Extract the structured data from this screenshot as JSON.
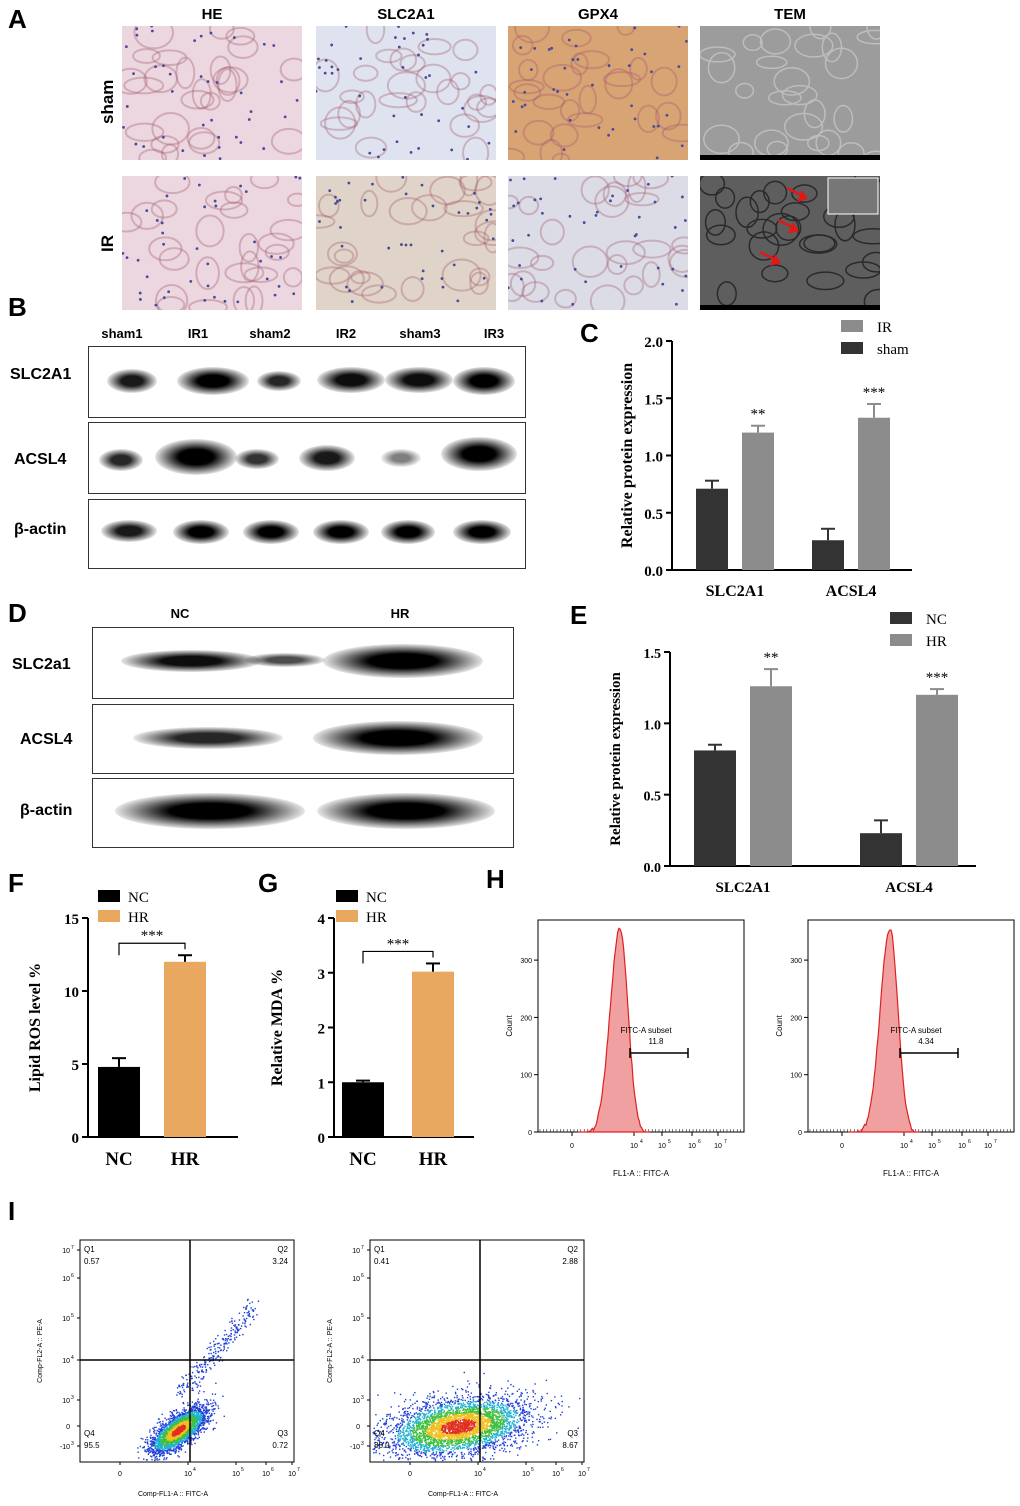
{
  "panel_a": {
    "label": "A",
    "columns": [
      "HE",
      "SLC2A1",
      "GPX4",
      "TEM"
    ],
    "rows": [
      "sham",
      "IR"
    ],
    "colors": {
      "he": "#ecd6df",
      "slc_sham": "#dfe3ef",
      "slc_ir": "#e0d4c8",
      "gpx_sham": "#d9a474",
      "gpx_ir": "#dcdce6",
      "tem_sham": "#9c9c9c",
      "tem_ir": "#5e5e5e",
      "arrow": "#e01818"
    }
  },
  "panel_b": {
    "label": "B",
    "lanes": [
      "sham1",
      "IR1",
      "sham2",
      "IR2",
      "sham3",
      "IR3"
    ],
    "proteins": [
      "SLC2A1",
      "ACSL4",
      "β-actin"
    ]
  },
  "panel_d": {
    "label": "D",
    "lanes": [
      "NC",
      "HR"
    ],
    "proteins": [
      "SLC2a1",
      "ACSL4",
      "β-actin"
    ]
  },
  "panel_h": {
    "label": "H",
    "ylabel": "Count",
    "xlabel": "FL1-A :: FITC-A",
    "gate_label": "FITC-A subset",
    "yticks": [
      "0",
      "100",
      "200",
      "300"
    ],
    "xticks": [
      "0",
      "10",
      "10",
      "10",
      "10"
    ],
    "xtick_exps": [
      "",
      "4",
      "5",
      "6",
      "7"
    ],
    "plots": [
      {
        "value": "11.8"
      },
      {
        "value": "4.34"
      }
    ],
    "fill_color": "#f0a0a0",
    "line_color": "#e02020"
  },
  "panel_i": {
    "label": "I",
    "ylabel": "Comp-FL2-A :: PE-A",
    "xlabel": "Comp-FL1-A :: FITC-A",
    "quadrant_names": [
      "Q1",
      "Q2",
      "Q3",
      "Q4"
    ],
    "plots": [
      {
        "q1": "0.57",
        "q2": "3.24",
        "q3": "0.72",
        "q4": "95.5"
      },
      {
        "q1": "0.41",
        "q2": "2.88",
        "q3": "8.67",
        "q4": "88.0"
      }
    ]
  },
  "chart_data": [
    {
      "panel": "C",
      "type": "bar",
      "categories": [
        "SLC2A1",
        "ACSL4"
      ],
      "ylabel": "Relative protein expression",
      "ylim": [
        0,
        2.0
      ],
      "yticks": [
        "0.0",
        "0.5",
        "1.0",
        "1.5",
        "2.0"
      ],
      "legend_position": "top-right",
      "series": [
        {
          "name": "IR",
          "values": [
            1.2,
            1.33
          ],
          "errors": [
            0.06,
            0.12
          ],
          "color": "#8c8c8c"
        },
        {
          "name": "sham",
          "values": [
            0.71,
            0.26
          ],
          "errors": [
            0.07,
            0.1
          ],
          "color": "#333333"
        }
      ],
      "bar_order": [
        "sham",
        "IR"
      ],
      "annotations": [
        "**",
        "***"
      ]
    },
    {
      "panel": "E",
      "type": "bar",
      "categories": [
        "SLC2A1",
        "ACSL4"
      ],
      "ylabel": "Relative protein expression",
      "ylim": [
        0,
        1.5
      ],
      "yticks": [
        "0.0",
        "0.5",
        "1.0",
        "1.5"
      ],
      "legend_position": "top-right",
      "series": [
        {
          "name": "NC",
          "values": [
            0.81,
            0.23
          ],
          "errors": [
            0.04,
            0.09
          ],
          "color": "#333333"
        },
        {
          "name": "HR",
          "values": [
            1.26,
            1.2
          ],
          "errors": [
            0.12,
            0.04
          ],
          "color": "#8c8c8c"
        }
      ],
      "annotations": [
        "**",
        "***"
      ]
    },
    {
      "panel": "F",
      "type": "bar",
      "categories": [
        "NC",
        "HR"
      ],
      "ylabel": "Lipid ROS level %",
      "ylim": [
        0,
        15
      ],
      "yticks": [
        "0",
        "5",
        "10",
        "15"
      ],
      "legend_position": "top-left",
      "legend": [
        "NC",
        "HR"
      ],
      "values": [
        4.8,
        12.0
      ],
      "errors": [
        0.6,
        0.45
      ],
      "colors": [
        "#000000",
        "#e8a860"
      ],
      "annotation": "***"
    },
    {
      "panel": "G",
      "type": "bar",
      "categories": [
        "NC",
        "HR"
      ],
      "ylabel": "Relative MDA %",
      "ylim": [
        0,
        4
      ],
      "yticks": [
        "0",
        "1",
        "2",
        "3",
        "4"
      ],
      "legend_position": "top-left",
      "legend": [
        "NC",
        "HR"
      ],
      "values": [
        1.0,
        3.02
      ],
      "errors": [
        0.03,
        0.15
      ],
      "colors": [
        "#000000",
        "#e8a860"
      ],
      "annotation": "***"
    }
  ]
}
